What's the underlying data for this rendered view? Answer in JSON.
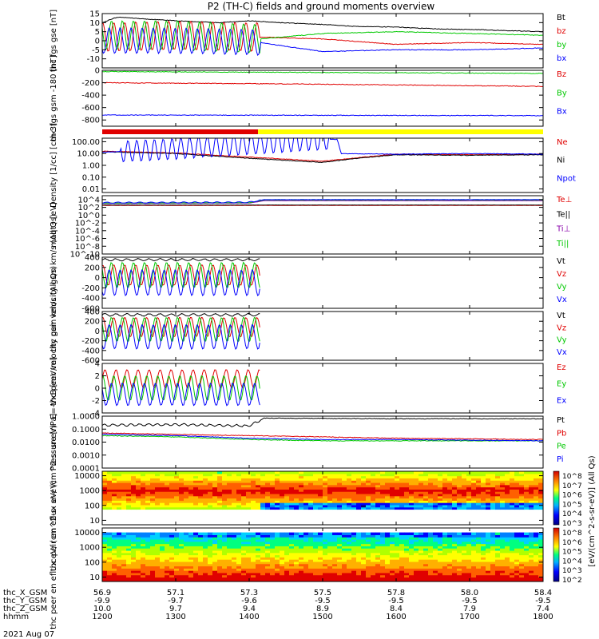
{
  "title": "P2 (TH-C) fields and ground moments overview",
  "date_label": "2021 Aug 07",
  "colors": {
    "black": "#000000",
    "red": "#e00000",
    "green": "#00c800",
    "blue": "#0000ff",
    "purple": "#8800aa",
    "yellow": "#ffff00",
    "gray": "#808080"
  },
  "time_axis": {
    "range": [
      1200,
      1800
    ],
    "ticks": [
      1200,
      1300,
      1400,
      1500,
      1600,
      1700,
      1800
    ],
    "rows": [
      {
        "label": "thc_X_GSM",
        "values": [
          "56.9",
          "57.1",
          "57.3",
          "57.5",
          "57.8",
          "58.0",
          "58.4"
        ]
      },
      {
        "label": "thc_Y_GSM",
        "values": [
          "-9.9",
          "-9.7",
          "-9.6",
          "-9.5",
          "-9.5",
          "-9.5",
          "-9.5"
        ]
      },
      {
        "label": "thc_Z_GSM",
        "values": [
          "10.0",
          "9.7",
          "9.4",
          "8.9",
          "8.4",
          "7.9",
          "7.4"
        ]
      },
      {
        "label": "hhmm",
        "values": [
          "1200",
          "1300",
          "1400",
          "1500",
          "1600",
          "1700",
          "1800"
        ]
      }
    ]
  },
  "colorbar": {
    "label": "[eV/(cm^2-s-sr-eV)] (All Qs)",
    "ticks_upper": [
      "10^8",
      "10^7",
      "10^6",
      "10^5",
      "10^4",
      "10^3"
    ],
    "ticks_lower": [
      "10^8",
      "10^6",
      "10^5",
      "10^4",
      "10^3",
      "10^2"
    ]
  },
  "chart_data": [
    {
      "type": "line",
      "ylabel": "thc fgs gse [nT]",
      "ylim": [
        -15,
        15
      ],
      "ticks": [
        {
          "v": 15,
          "t": "15"
        },
        {
          "v": 10,
          "t": "10"
        },
        {
          "v": 5,
          "t": "5"
        },
        {
          "v": 0,
          "t": "0"
        },
        {
          "v": -5,
          "t": "-5"
        },
        {
          "v": -10,
          "t": "-10"
        }
      ],
      "series": [
        {
          "name": "Bt",
          "color": "black",
          "x": [
            1200,
            1220,
            1260,
            1300,
            1360,
            1400,
            1440,
            1500,
            1540,
            1600,
            1660,
            1720,
            1800
          ],
          "y": [
            10,
            13,
            12,
            11,
            10,
            11,
            10,
            9,
            8,
            7.5,
            6.5,
            6,
            5
          ]
        },
        {
          "name": "bz",
          "color": "red",
          "osc": {
            "from": 1200,
            "to": 1415,
            "amp": 8,
            "period": 15
          },
          "x": [
            1200,
            1300,
            1415,
            1500,
            1600,
            1700,
            1800
          ],
          "y": [
            2,
            3,
            2,
            1,
            -2,
            -1,
            -2
          ]
        },
        {
          "name": "by",
          "color": "green",
          "osc": {
            "from": 1200,
            "to": 1415,
            "amp": 8,
            "period": 15
          },
          "x": [
            1200,
            1300,
            1415,
            1500,
            1600,
            1700,
            1800
          ],
          "y": [
            3,
            3,
            1,
            4,
            5,
            4,
            3
          ]
        },
        {
          "name": "bx",
          "color": "blue",
          "osc": {
            "from": 1200,
            "to": 1415,
            "amp": 7,
            "period": 15
          },
          "x": [
            1200,
            1300,
            1415,
            1500,
            1600,
            1700,
            1800
          ],
          "y": [
            0,
            0,
            -1,
            -6,
            -5,
            -5,
            -4
          ]
        }
      ]
    },
    {
      "type": "line",
      "ylabel": "thc fgs gsm -180 [nT]",
      "ylim": [
        -900,
        0
      ],
      "ticks": [
        {
          "v": 0,
          "t": "0"
        },
        {
          "v": -200,
          "t": "-200"
        },
        {
          "v": -400,
          "t": "-400"
        },
        {
          "v": -600,
          "t": "-600"
        },
        {
          "v": -800,
          "t": "-800"
        }
      ],
      "series": [
        {
          "name": "Bz",
          "color": "red",
          "x": [
            1200,
            1400,
            1600,
            1800
          ],
          "y": [
            -200,
            -215,
            -235,
            -260
          ]
        },
        {
          "name": "By",
          "color": "green",
          "x": [
            1200,
            1500,
            1800
          ],
          "y": [
            -20,
            -35,
            -50
          ]
        },
        {
          "name": "Bx",
          "color": "blue",
          "x": [
            1200,
            1500,
            1800
          ],
          "y": [
            -720,
            -725,
            -730
          ]
        }
      ]
    },
    {
      "type": "bar",
      "ylabel": "",
      "ylim": [
        0,
        1
      ],
      "segments": [
        {
          "from": 1200,
          "to": 1412,
          "color": "red"
        },
        {
          "from": 1412,
          "to": 1800,
          "color": "yellow"
        }
      ]
    },
    {
      "type": "line",
      "ylabel": "Density [1/cc] [cm-3]",
      "log": true,
      "ylim": [
        -2.3,
        2.3
      ],
      "ticks": [
        {
          "v": 2,
          "t": "100.00"
        },
        {
          "v": 1,
          "t": "10.00"
        },
        {
          "v": 0,
          "t": "1.00"
        },
        {
          "v": -1,
          "t": "0.10"
        },
        {
          "v": -2,
          "t": "0.01"
        }
      ],
      "series": [
        {
          "name": "Ne",
          "color": "red",
          "x": [
            1200,
            1300,
            1400,
            1500,
            1540,
            1600,
            1700,
            1800
          ],
          "y": [
            1.2,
            1.05,
            0.7,
            0.35,
            0.6,
            0.95,
            0.9,
            0.95
          ]
        },
        {
          "name": "Ni",
          "color": "black",
          "x": [
            1200,
            1300,
            1400,
            1500,
            1540,
            1600,
            1700,
            1800
          ],
          "y": [
            1.15,
            1.0,
            0.6,
            0.25,
            0.55,
            0.9,
            0.85,
            0.9
          ]
        },
        {
          "name": "Npot",
          "color": "blue",
          "osc": {
            "from": 1225,
            "to": 1510,
            "amp": 0.9,
            "period": 12
          },
          "x": [
            1200,
            1300,
            1400,
            1500,
            1520,
            1525,
            1600,
            1700,
            1800
          ],
          "y": [
            1.1,
            1.4,
            1.8,
            2.2,
            2.2,
            1.0,
            0.95,
            1.0,
            0.95
          ]
        }
      ]
    },
    {
      "type": "line",
      "ylabel": "moqt3 [eV]",
      "log": true,
      "ylim": [
        -10,
        5
      ],
      "ticks": [
        {
          "v": 4,
          "t": "10^4"
        },
        {
          "v": 2,
          "t": "10^2"
        },
        {
          "v": 0,
          "t": "10^0"
        },
        {
          "v": -2,
          "t": "10^-2"
        },
        {
          "v": -4,
          "t": "10^-4"
        },
        {
          "v": -6,
          "t": "10^-6"
        },
        {
          "v": -8,
          "t": "10^-8"
        },
        {
          "v": -10,
          "t": "10^-10"
        }
      ],
      "series": [
        {
          "name": "Te⊥",
          "color": "red",
          "x": [
            1200,
            1800
          ],
          "y": [
            2.5,
            2.5
          ]
        },
        {
          "name": "Te||",
          "color": "black",
          "x": [
            1200,
            1800
          ],
          "y": [
            2.6,
            2.6
          ]
        },
        {
          "name": "Ti⊥",
          "color": "purple",
          "x": [
            1200,
            1400,
            1420,
            1800
          ],
          "y": [
            3.0,
            3.1,
            3.7,
            3.7
          ]
        },
        {
          "name": "Ti||",
          "color": "green",
          "x": [
            1200,
            1400,
            1420,
            1800
          ],
          "y": [
            3.1,
            3.2,
            3.9,
            3.9
          ]
        },
        {
          "name": "",
          "color": "blue",
          "osc": {
            "from": 1200,
            "to": 1415,
            "amp": 0.15,
            "period": 15
          },
          "x": [
            1200,
            1400,
            1420,
            1800
          ],
          "y": [
            3.2,
            3.3,
            4.0,
            4.0
          ]
        }
      ]
    },
    {
      "type": "line",
      "ylabel": "thc peir velocity gsm km/s (All Qs)",
      "ylim": [
        -600,
        400
      ],
      "ticks": [
        {
          "v": 400,
          "t": "400"
        },
        {
          "v": 200,
          "t": "200"
        },
        {
          "v": 0,
          "t": "0"
        },
        {
          "v": -200,
          "t": "-200"
        },
        {
          "v": -400,
          "t": "-400"
        },
        {
          "v": -600,
          "t": "-600"
        }
      ],
      "series": [
        {
          "name": "Vt",
          "color": "black",
          "osc": {
            "from": 1200,
            "to": 1415,
            "amp": 20,
            "period": 15
          },
          "x": [
            1200,
            1415
          ],
          "y": [
            350,
            350
          ]
        },
        {
          "name": "Vz",
          "color": "red",
          "osc": {
            "from": 1200,
            "to": 1415,
            "amp": 200,
            "period": 15
          },
          "x": [
            1200,
            1415
          ],
          "y": [
            50,
            50
          ]
        },
        {
          "name": "Vy",
          "color": "green",
          "osc": {
            "from": 1200,
            "to": 1415,
            "amp": 250,
            "period": 15
          },
          "x": [
            1200,
            1415
          ],
          "y": [
            50,
            50
          ]
        },
        {
          "name": "Vx",
          "color": "blue",
          "osc": {
            "from": 1200,
            "to": 1415,
            "amp": 250,
            "period": 15
          },
          "x": [
            1200,
            1415
          ],
          "y": [
            -100,
            -100
          ]
        }
      ]
    },
    {
      "type": "line",
      "ylabel": "thc peer velocity gsm km/s (All Qs)",
      "ylim": [
        -600,
        400
      ],
      "ticks": [
        {
          "v": 400,
          "t": "400"
        },
        {
          "v": 200,
          "t": "200"
        },
        {
          "v": 0,
          "t": "0"
        },
        {
          "v": -200,
          "t": "-200"
        },
        {
          "v": -400,
          "t": "-400"
        },
        {
          "v": -600,
          "t": "-600"
        }
      ],
      "series": [
        {
          "name": "Vt",
          "color": "black",
          "osc": {
            "from": 1200,
            "to": 1415,
            "amp": 25,
            "period": 15
          },
          "x": [
            1200,
            1415
          ],
          "y": [
            330,
            330
          ]
        },
        {
          "name": "Vz",
          "color": "red",
          "osc": {
            "from": 1200,
            "to": 1415,
            "amp": 200,
            "period": 15
          },
          "x": [
            1200,
            1415
          ],
          "y": [
            80,
            80
          ]
        },
        {
          "name": "Vy",
          "color": "green",
          "osc": {
            "from": 1200,
            "to": 1415,
            "amp": 250,
            "period": 15
          },
          "x": [
            1200,
            1415
          ],
          "y": [
            30,
            30
          ]
        },
        {
          "name": "Vx",
          "color": "blue",
          "osc": {
            "from": 1200,
            "to": 1415,
            "amp": 250,
            "period": 15
          },
          "x": [
            1200,
            1415
          ],
          "y": [
            -120,
            -120
          ]
        }
      ]
    },
    {
      "type": "line",
      "ylabel": "E=-VxB [mV/m]",
      "ylim": [
        -4,
        4
      ],
      "ticks": [
        {
          "v": 4,
          "t": "4"
        },
        {
          "v": 2,
          "t": "2"
        },
        {
          "v": 0,
          "t": "0"
        },
        {
          "v": -2,
          "t": "-2"
        },
        {
          "v": -4,
          "t": "-4"
        }
      ],
      "series": [
        {
          "name": "Ez",
          "color": "red",
          "osc": {
            "from": 1200,
            "to": 1415,
            "amp": 1.5,
            "period": 15
          },
          "x": [
            1200,
            1415
          ],
          "y": [
            1.5,
            1.5
          ]
        },
        {
          "name": "Ey",
          "color": "green",
          "osc": {
            "from": 1200,
            "to": 1415,
            "amp": 2.0,
            "period": 15
          },
          "x": [
            1200,
            1415
          ],
          "y": [
            0,
            0
          ]
        },
        {
          "name": "Ex",
          "color": "blue",
          "osc": {
            "from": 1200,
            "to": 1415,
            "amp": 1.8,
            "period": 15
          },
          "x": [
            1200,
            1415
          ],
          "y": [
            -1,
            -1
          ]
        }
      ]
    },
    {
      "type": "line",
      "ylabel": "Pressure [nPa]",
      "log": true,
      "ylim": [
        -4,
        0
      ],
      "ticks": [
        {
          "v": 0,
          "t": "1.0000"
        },
        {
          "v": -1,
          "t": "0.1000"
        },
        {
          "v": -2,
          "t": "0.0100"
        },
        {
          "v": -3,
          "t": "0.0010"
        },
        {
          "v": -4,
          "t": "0.0001"
        }
      ],
      "series": [
        {
          "name": "Pt",
          "color": "black",
          "osc": {
            "from": 1200,
            "to": 1415,
            "amp": 0.08,
            "period": 12
          },
          "x": [
            1200,
            1300,
            1400,
            1420,
            1600,
            1800
          ],
          "y": [
            -0.7,
            -0.65,
            -0.75,
            -0.15,
            -0.2,
            -0.2
          ]
        },
        {
          "name": "Pb",
          "color": "red",
          "x": [
            1200,
            1300,
            1500,
            1600,
            1800
          ],
          "y": [
            -1.3,
            -1.4,
            -1.6,
            -1.7,
            -1.8
          ]
        },
        {
          "name": "Pe",
          "color": "green",
          "x": [
            1200,
            1300,
            1400,
            1500,
            1600,
            1800
          ],
          "y": [
            -1.5,
            -1.6,
            -1.8,
            -1.9,
            -1.9,
            -1.9
          ]
        },
        {
          "name": "Pi",
          "color": "blue",
          "x": [
            1200,
            1300,
            1400,
            1500,
            1600,
            1800
          ],
          "y": [
            -1.4,
            -1.5,
            -1.7,
            -1.8,
            -1.8,
            -1.9
          ]
        }
      ]
    },
    {
      "type": "heatmap",
      "ylabel": "thc peir en eflux eV/ (cm^2-s- sr-eV)",
      "ylim": [
        0.7,
        4.3
      ],
      "ticks": [
        {
          "v": 4,
          "t": "10000"
        },
        {
          "v": 3,
          "t": "1000"
        },
        {
          "v": 2,
          "t": "100"
        },
        {
          "v": 1,
          "t": "10"
        }
      ]
    },
    {
      "type": "heatmap",
      "ylabel": "thc peer en eflux eV/ (cm^2-s- sr-eV)",
      "ylim": [
        0.7,
        4.3
      ],
      "ticks": [
        {
          "v": 4,
          "t": "10000"
        },
        {
          "v": 3,
          "t": "1000"
        },
        {
          "v": 2,
          "t": "100"
        },
        {
          "v": 1,
          "t": "10"
        }
      ]
    }
  ]
}
